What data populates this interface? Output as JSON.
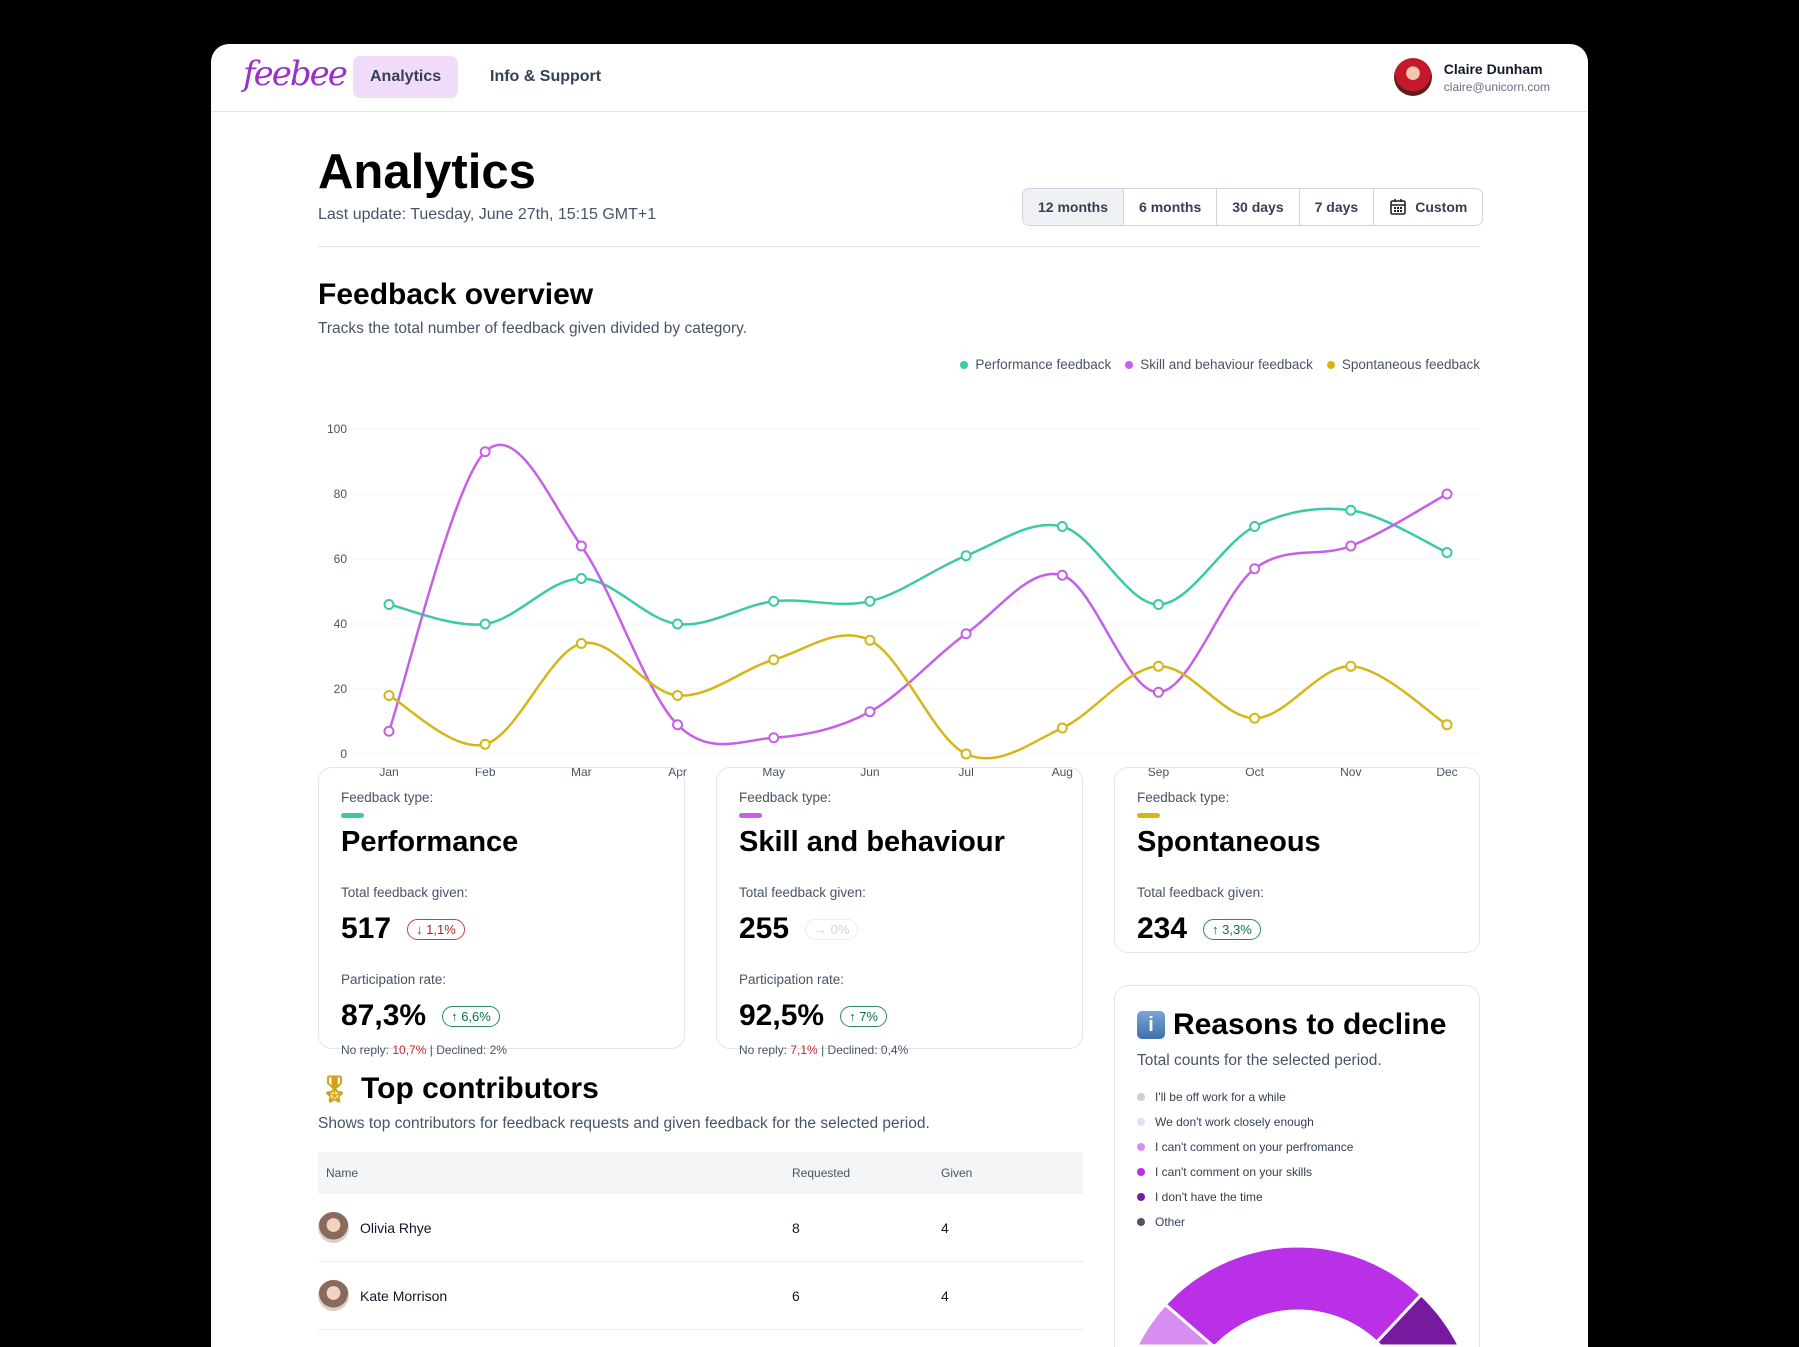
{
  "header": {
    "logo": "feebee",
    "nav": [
      "Analytics",
      "Info & Support"
    ],
    "user": {
      "name": "Claire Dunham",
      "email": "claire@unicorn.com"
    }
  },
  "page": {
    "title": "Analytics",
    "last_update": "Last update: Tuesday, June 27th, 15:15 GMT+1",
    "ranges": [
      "12 months",
      "6 months",
      "30 days",
      "7 days",
      "Custom"
    ],
    "selected_range": "12 months"
  },
  "overview": {
    "title": "Feedback overview",
    "subtitle": "Tracks the total number of feedback given divided by category."
  },
  "chart_data": {
    "type": "line",
    "x": [
      "Jan",
      "Feb",
      "Mar",
      "Apr",
      "May",
      "Jun",
      "Jul",
      "Aug",
      "Sep",
      "Oct",
      "Nov",
      "Dec"
    ],
    "ylim": [
      0,
      100
    ],
    "yticks": [
      0,
      20,
      40,
      60,
      80,
      100
    ],
    "legend_position": "top-right",
    "grid": true,
    "series": [
      {
        "name": "Performance feedback",
        "color": "#3cc9a6",
        "values": [
          46,
          40,
          54,
          40,
          47,
          47,
          61,
          70,
          46,
          70,
          75,
          62
        ]
      },
      {
        "name": "Skill and behaviour feedback",
        "color": "#c660e6",
        "values": [
          7,
          93,
          64,
          9,
          5,
          13,
          37,
          55,
          19,
          57,
          64,
          80
        ]
      },
      {
        "name": "Spontaneous feedback",
        "color": "#d4b716",
        "values": [
          18,
          3,
          34,
          18,
          29,
          35,
          0,
          8,
          27,
          11,
          27,
          9
        ]
      }
    ]
  },
  "cards": [
    {
      "label": "Feedback type:",
      "type": "Performance",
      "color": "#3cc9a6",
      "total_label": "Total feedback given:",
      "total": "517",
      "total_change": "↓ 1,1%",
      "part_label": "Participation rate:",
      "part": "87,3%",
      "part_change": "↑ 6,6%",
      "no_reply_label": "No reply:",
      "no_reply": "10,7%",
      "declined": "Declined: 2%"
    },
    {
      "label": "Feedback type:",
      "type": "Skill and behaviour",
      "color": "#c660e6",
      "total_label": "Total feedback given:",
      "total": "255",
      "total_change": "→ 0%",
      "part_label": "Participation rate:",
      "part": "92,5%",
      "part_change": "↑ 7%",
      "no_reply_label": "No reply:",
      "no_reply": "7,1%",
      "declined": "Declined: 0,4%"
    },
    {
      "label": "Feedback type:",
      "type": "Spontaneous",
      "color": "#d4b716",
      "total_label": "Total feedback given:",
      "total": "234",
      "total_change": "↑ 3,3%"
    }
  ],
  "contributors": {
    "title": "Top contributors",
    "subtitle": "Shows top contributors for feedback requests and given feedback for the selected period.",
    "columns": [
      "Name",
      "Requested",
      "Given"
    ],
    "rows": [
      {
        "name": "Olivia Rhye",
        "requested": "8",
        "given": "4"
      },
      {
        "name": "Kate Morrison",
        "requested": "6",
        "given": "4"
      }
    ]
  },
  "reasons": {
    "title": "Reasons to decline",
    "subtitle": "Total counts for the selected period.",
    "items": [
      {
        "label": "I'll be off work for a while",
        "color": "#d0d0d4",
        "value": 3
      },
      {
        "label": "We don't work closely enough",
        "color": "#ecdcf5",
        "value": 5
      },
      {
        "label": "I can't comment on your perfromance",
        "color": "#d88ef0",
        "value": 20
      },
      {
        "label": "I can't comment on your skills",
        "color": "#b930e6",
        "value": 42
      },
      {
        "label": "I don't have the time",
        "color": "#781aa0",
        "value": 15
      },
      {
        "label": "Other",
        "color": "#4b5563",
        "value": 15
      }
    ]
  }
}
